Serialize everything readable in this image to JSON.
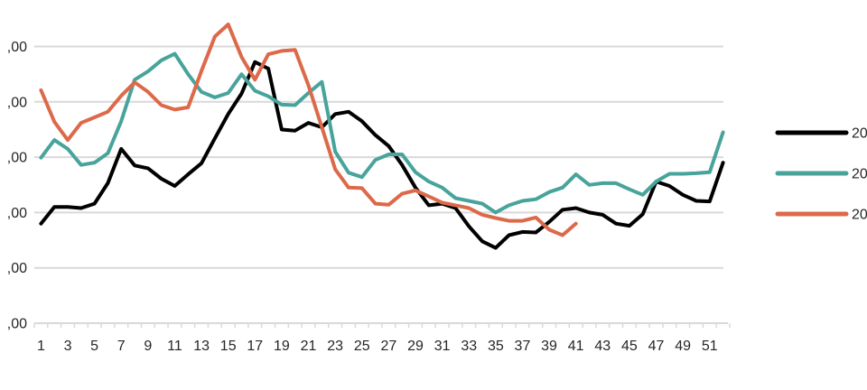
{
  "colors": {
    "background": "#ffffff",
    "gridline": "#d9d9d9",
    "axis_tick": "#d9d9d9",
    "axis_text": "#262626",
    "series_black": "#000000",
    "series_teal": "#48a49b",
    "series_orange": "#dc6a4a"
  },
  "chart_data": {
    "type": "line",
    "title": "",
    "xlabel": "",
    "ylabel": "",
    "grid": true,
    "x_ticks": [
      1,
      3,
      5,
      7,
      9,
      11,
      13,
      15,
      17,
      19,
      21,
      23,
      25,
      27,
      29,
      31,
      33,
      35,
      37,
      39,
      41,
      43,
      45,
      47,
      49,
      51
    ],
    "x_range": [
      1,
      52
    ],
    "ylim": [
      0,
      6
    ],
    "y_gridline_values": [
      0,
      1,
      2,
      3,
      4,
      5
    ],
    "y_tick_labels": [
      ",00",
      ",00",
      ",00",
      ",00",
      ",00",
      ",00"
    ],
    "y_tick_labels_note": "integer part of each y label is cropped off the left edge of the image",
    "legend": {
      "position": "right",
      "entries": [
        {
          "label": "20",
          "color": "#000000"
        },
        {
          "label": "20",
          "color": "#48a49b"
        },
        {
          "label": "20",
          "color": "#dc6a4a"
        }
      ]
    },
    "series": [
      {
        "name": "20",
        "color": "#000000",
        "x_start": 1,
        "values": [
          1.8,
          2.1,
          2.1,
          2.08,
          2.16,
          2.53,
          3.15,
          2.85,
          2.8,
          2.61,
          2.48,
          2.69,
          2.89,
          3.34,
          3.78,
          4.15,
          4.72,
          4.6,
          3.5,
          3.48,
          3.62,
          3.54,
          3.78,
          3.82,
          3.65,
          3.4,
          3.2,
          2.86,
          2.45,
          2.13,
          2.16,
          2.08,
          1.75,
          1.48,
          1.36,
          1.59,
          1.65,
          1.64,
          1.83,
          2.05,
          2.08,
          2.0,
          1.96,
          1.8,
          1.76,
          1.97,
          2.56,
          2.48,
          2.32,
          2.21,
          2.2,
          2.9
        ]
      },
      {
        "name": "20",
        "color": "#48a49b",
        "x_start": 1,
        "values": [
          2.99,
          3.31,
          3.15,
          2.86,
          2.9,
          3.07,
          3.65,
          4.4,
          4.55,
          4.75,
          4.87,
          4.5,
          4.18,
          4.08,
          4.16,
          4.5,
          4.2,
          4.1,
          3.95,
          3.94,
          4.16,
          4.36,
          3.1,
          2.72,
          2.64,
          2.95,
          3.05,
          3.05,
          2.73,
          2.56,
          2.45,
          2.26,
          2.21,
          2.16,
          2.0,
          2.13,
          2.21,
          2.24,
          2.37,
          2.45,
          2.69,
          2.5,
          2.53,
          2.53,
          2.42,
          2.32,
          2.56,
          2.7,
          2.7,
          2.71,
          2.73,
          3.45
        ]
      },
      {
        "name": "20",
        "color": "#dc6a4a",
        "x_start": 1,
        "values": [
          4.21,
          3.64,
          3.31,
          3.62,
          3.72,
          3.82,
          4.11,
          4.35,
          4.18,
          3.94,
          3.86,
          3.9,
          4.56,
          5.18,
          5.4,
          4.81,
          4.4,
          4.86,
          4.92,
          4.94,
          4.3,
          3.54,
          2.78,
          2.45,
          2.44,
          2.16,
          2.14,
          2.34,
          2.4,
          2.29,
          2.18,
          2.13,
          2.08,
          1.96,
          1.9,
          1.85,
          1.85,
          1.91,
          1.69,
          1.59,
          1.8
        ]
      }
    ]
  }
}
